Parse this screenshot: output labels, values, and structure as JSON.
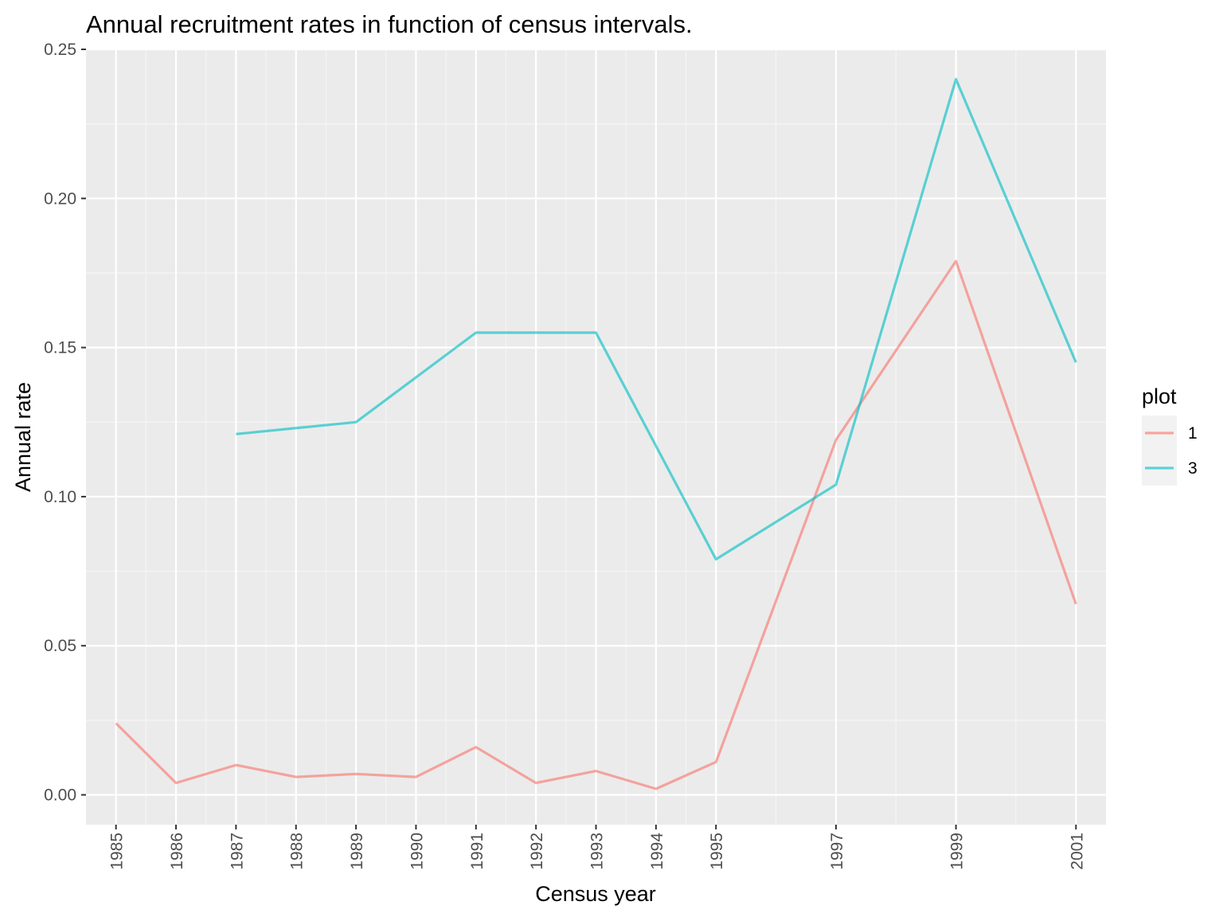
{
  "chart_data": {
    "type": "line",
    "title": "Annual recruitment rates in function of census intervals.",
    "xlabel": "Census year",
    "ylabel": "Annual rate",
    "x_ticks": [
      1985,
      1986,
      1987,
      1988,
      1989,
      1990,
      1991,
      1992,
      1993,
      1994,
      1995,
      1997,
      1999,
      2001
    ],
    "xlim": [
      1984.5,
      2001.5
    ],
    "y_ticks": [
      0.0,
      0.05,
      0.1,
      0.15,
      0.2,
      0.25
    ],
    "y_tick_labels": [
      "0.00",
      "0.05",
      "0.10",
      "0.15",
      "0.20",
      "0.25"
    ],
    "ylim": [
      -0.01,
      0.25
    ],
    "grid": true,
    "legend": {
      "title": "plot",
      "placement": "right"
    },
    "series": [
      {
        "name": "1",
        "color": "#F8766D",
        "points": [
          [
            1985,
            0.024
          ],
          [
            1986,
            0.004
          ],
          [
            1987,
            0.01
          ],
          [
            1988,
            0.006
          ],
          [
            1989,
            0.007
          ],
          [
            1990,
            0.006
          ],
          [
            1991,
            0.016
          ],
          [
            1992,
            0.004
          ],
          [
            1993,
            0.008
          ],
          [
            1994,
            0.002
          ],
          [
            1995,
            0.011
          ],
          [
            1997,
            0.119
          ],
          [
            1999,
            0.179
          ],
          [
            2001,
            0.064
          ]
        ]
      },
      {
        "name": "3",
        "color": "#00BFC4",
        "points": [
          [
            1987,
            0.121
          ],
          [
            1989,
            0.125
          ],
          [
            1991,
            0.155
          ],
          [
            1993,
            0.155
          ],
          [
            1995,
            0.079
          ],
          [
            1997,
            0.104
          ],
          [
            1999,
            0.24
          ],
          [
            2001,
            0.145
          ]
        ]
      }
    ]
  }
}
